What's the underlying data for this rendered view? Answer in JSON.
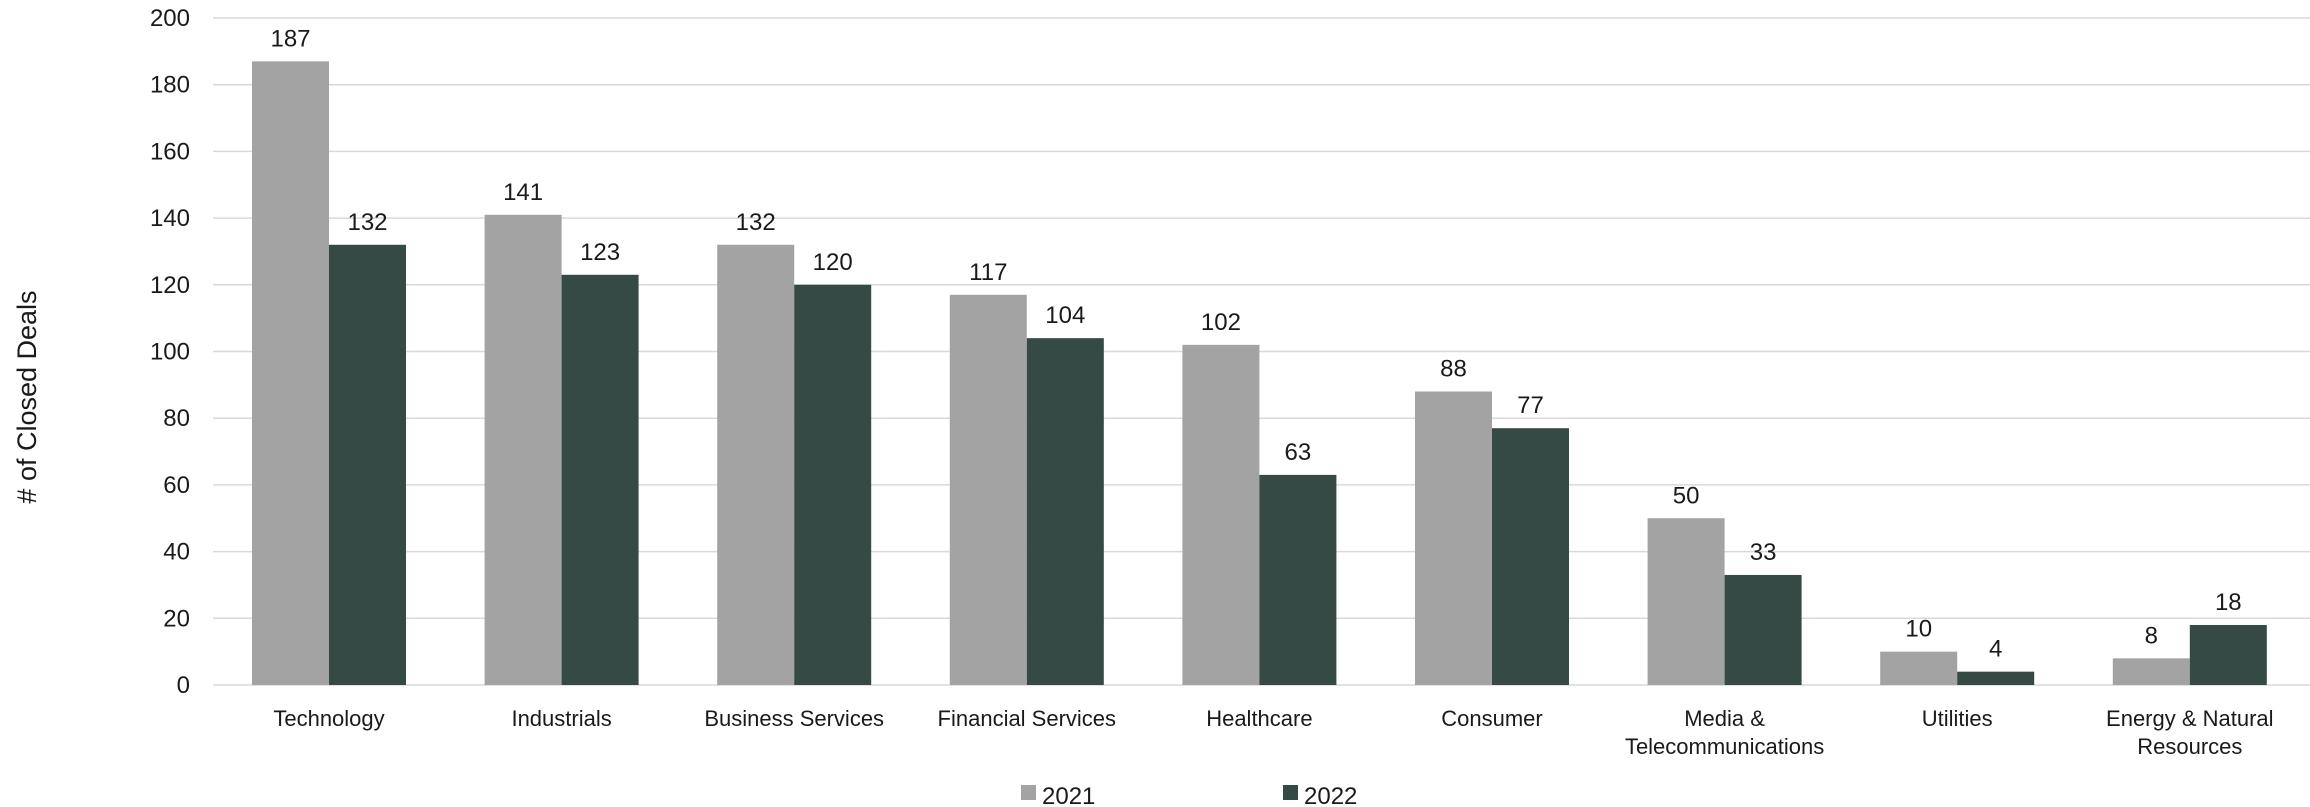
{
  "chart_data": {
    "type": "bar",
    "title": "",
    "xlabel": "",
    "ylabel": "# of Closed Deals",
    "ylim": [
      0,
      200
    ],
    "yticks": [
      0,
      20,
      40,
      60,
      80,
      100,
      120,
      140,
      160,
      180,
      200
    ],
    "grid": true,
    "legend_position": "bottom",
    "categories": [
      [
        "Technology"
      ],
      [
        "Industrials"
      ],
      [
        "Business Services"
      ],
      [
        "Financial Services"
      ],
      [
        "Healthcare"
      ],
      [
        "Consumer"
      ],
      [
        "Media &",
        "Telecommunications"
      ],
      [
        "Utilities"
      ],
      [
        "Energy & Natural",
        "Resources"
      ]
    ],
    "series": [
      {
        "name": "2021",
        "color": "#a3a3a3",
        "values": [
          187,
          141,
          132,
          117,
          102,
          88,
          50,
          10,
          8
        ]
      },
      {
        "name": "2022",
        "color": "#354a44",
        "values": [
          132,
          123,
          120,
          104,
          63,
          77,
          33,
          4,
          18
        ]
      }
    ]
  }
}
